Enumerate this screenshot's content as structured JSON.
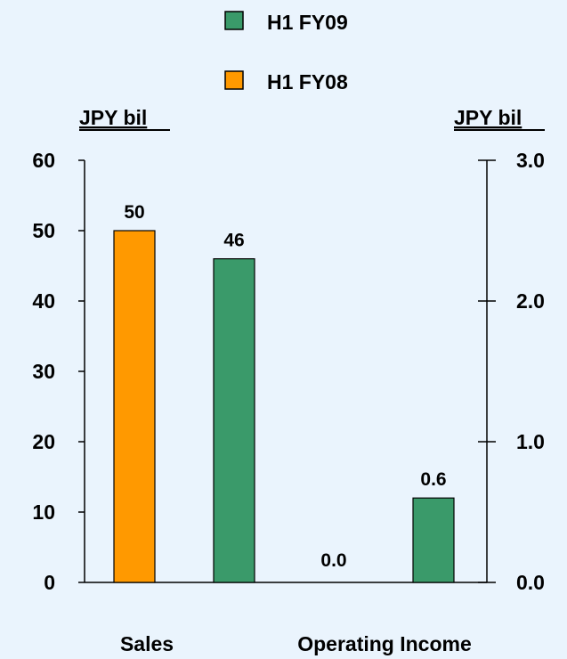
{
  "chart_data": {
    "type": "bar",
    "legend": [
      {
        "name": "H1 FY09",
        "color": "#3a9a6a"
      },
      {
        "name": "H1 FY08",
        "color": "#ff9900"
      }
    ],
    "left_axis": {
      "label": "JPY bil",
      "ylim": [
        0,
        60
      ],
      "ticks": [
        "0",
        "10",
        "20",
        "30",
        "40",
        "50",
        "60"
      ],
      "tick_values": [
        0,
        10,
        20,
        30,
        40,
        50,
        60
      ]
    },
    "right_axis": {
      "label": "JPY bil",
      "ylim": [
        0,
        3.0
      ],
      "ticks": [
        "0.0",
        "1.0",
        "2.0",
        "3.0"
      ],
      "tick_values": [
        0,
        1.0,
        2.0,
        3.0
      ]
    },
    "categories": [
      {
        "label": "Sales",
        "axis": "left",
        "bars": [
          {
            "series": "H1 FY08",
            "value": 50,
            "value_label": "50"
          },
          {
            "series": "H1 FY09",
            "value": 46,
            "value_label": "46"
          }
        ]
      },
      {
        "label": "Operating Income",
        "axis": "right",
        "bars": [
          {
            "series": "H1 FY08",
            "value": 0.0,
            "value_label": "0.0"
          },
          {
            "series": "H1 FY09",
            "value": 0.6,
            "value_label": "0.6"
          }
        ]
      }
    ]
  }
}
